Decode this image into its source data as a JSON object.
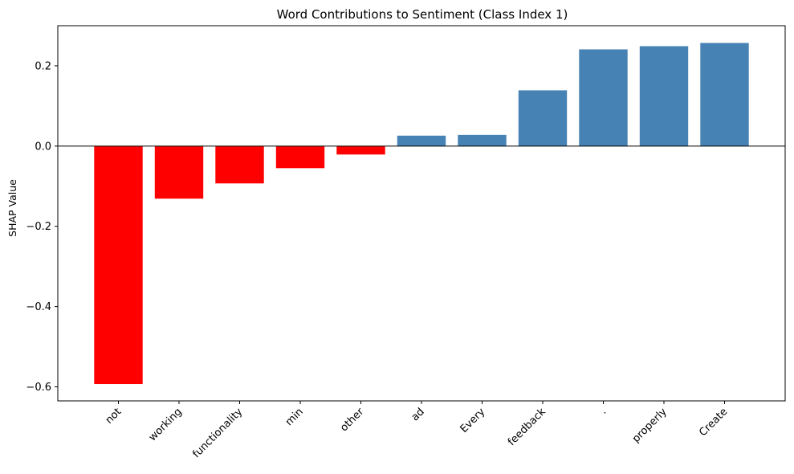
{
  "chart_data": {
    "type": "bar",
    "title": "Word Contributions to Sentiment (Class Index 1)",
    "xlabel": "",
    "ylabel": "SHAP Value",
    "categories": [
      "not",
      "working",
      "functionality",
      "min",
      "other",
      "ad",
      "Every",
      "feedback",
      ".",
      "properly",
      "Create"
    ],
    "values": [
      -0.593,
      -0.131,
      -0.093,
      -0.055,
      -0.021,
      0.026,
      0.028,
      0.139,
      0.241,
      0.249,
      0.257
    ],
    "ylim": [
      -0.635,
      0.3
    ],
    "yticks": [
      -0.6,
      -0.4,
      -0.2,
      0.0,
      0.2
    ],
    "ytick_labels": [
      "−0.6",
      "−0.4",
      "−0.2",
      "0.0",
      "0.2"
    ],
    "colors": {
      "negative": "#ff0000",
      "positive": "#4682b4"
    },
    "zero_line": true,
    "grid": false,
    "legend": "none"
  }
}
